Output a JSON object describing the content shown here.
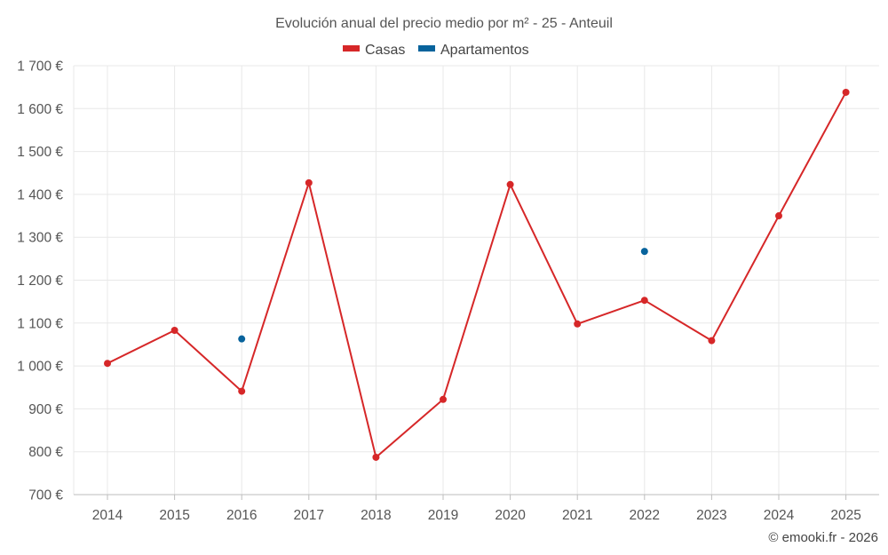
{
  "chart_data": {
    "type": "line",
    "title": "Evolución anual del precio medio por m² - 25 - Anteuil",
    "categories": [
      "2014",
      "2015",
      "2016",
      "2017",
      "2018",
      "2019",
      "2020",
      "2021",
      "2022",
      "2023",
      "2024",
      "2025"
    ],
    "series": [
      {
        "name": "Casas",
        "color": "#d62728",
        "mode": "line",
        "values": [
          1006,
          1083,
          941,
          1427,
          787,
          922,
          1423,
          1098,
          1153,
          1059,
          1350,
          1638
        ]
      },
      {
        "name": "Apartamentos",
        "color": "#08639c",
        "mode": "markers",
        "values": [
          null,
          null,
          1063,
          null,
          null,
          null,
          null,
          null,
          1267,
          null,
          null,
          null
        ]
      }
    ],
    "ylim": [
      700,
      1700
    ],
    "yticks": [
      700,
      800,
      900,
      1000,
      1100,
      1200,
      1300,
      1400,
      1500,
      1600,
      1700
    ],
    "ytick_labels": [
      "700 €",
      "800 €",
      "900 €",
      "1 000 €",
      "1 100 €",
      "1 200 €",
      "1 300 €",
      "1 400 €",
      "1 500 €",
      "1 600 €",
      "1 700 €"
    ],
    "xlabel": "",
    "ylabel": "",
    "grid": true,
    "legend": "top-center"
  },
  "credit": "© emooki.fr - 2026"
}
